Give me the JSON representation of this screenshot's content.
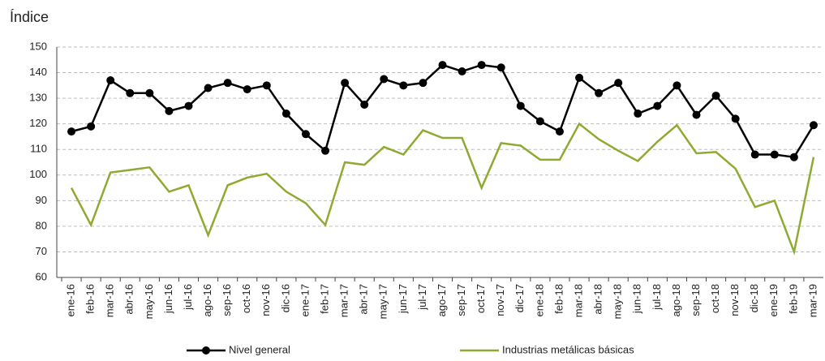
{
  "chart_data": {
    "type": "line",
    "y_label": "Índice",
    "categories": [
      "ene-16",
      "feb-16",
      "mar-16",
      "abr-16",
      "may-16",
      "jun-16",
      "jul-16",
      "ago-16",
      "sep-16",
      "oct-16",
      "nov-16",
      "dic-16",
      "ene-17",
      "feb-17",
      "mar-17",
      "abr-17",
      "may-17",
      "jun-17",
      "jul-17",
      "ago-17",
      "sep-17",
      "oct-17",
      "nov-17",
      "dic-17",
      "ene-18",
      "feb-18",
      "mar-18",
      "abr-18",
      "may-18",
      "jun-18",
      "jul-18",
      "ago-18",
      "sep-18",
      "oct-18",
      "nov-18",
      "dic-18",
      "ene-19",
      "feb-19",
      "mar-19"
    ],
    "series": [
      {
        "name": "Nivel general",
        "color": "#000000",
        "markers": true,
        "values": [
          117,
          119,
          137,
          132,
          132,
          125,
          127,
          134,
          136,
          133.5,
          135,
          124,
          116,
          109.5,
          136,
          127.5,
          137.5,
          135,
          136,
          143,
          140.5,
          143,
          142,
          127,
          121,
          117,
          138,
          132,
          136,
          124,
          127,
          135,
          123.5,
          131,
          122,
          108,
          108,
          107,
          119.5
        ]
      },
      {
        "name": "Industrias metálicas básicas",
        "color": "#8faa32",
        "markers": false,
        "values": [
          95,
          80.5,
          101,
          102,
          103,
          93.5,
          96,
          76.5,
          96,
          99,
          100.5,
          93.5,
          89,
          80.5,
          105,
          104,
          111,
          108,
          117.5,
          114.5,
          114.5,
          95,
          112.5,
          111.5,
          106,
          106,
          120,
          114,
          109.5,
          105.5,
          113,
          119.5,
          108.5,
          109,
          102.5,
          87.5,
          90,
          70,
          107
        ]
      }
    ],
    "ylim": [
      60,
      150
    ],
    "yticks": [
      60,
      70,
      80,
      90,
      100,
      110,
      120,
      130,
      140,
      150
    ],
    "grid": true
  }
}
